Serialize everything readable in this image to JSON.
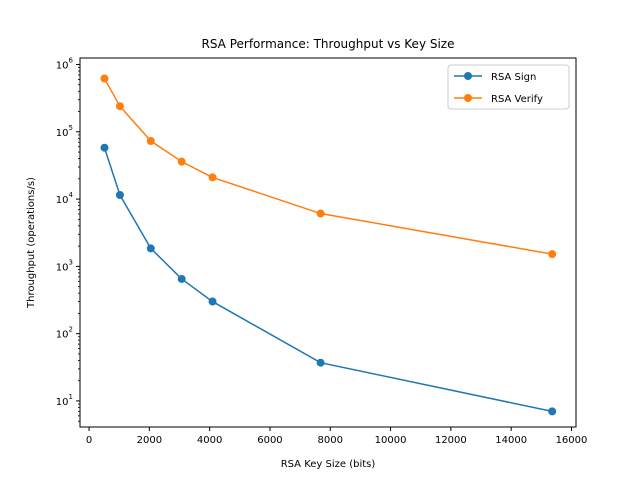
{
  "chart_data": {
    "type": "line",
    "title": "RSA Performance: Throughput vs Key Size",
    "xlabel": "RSA Key Size (bits)",
    "ylabel": "Throughput (operations/s)",
    "x_scale": "linear",
    "y_scale": "log",
    "xlim": [
      -300,
      16150
    ],
    "ylim": [
      4.1,
      1250000
    ],
    "x_ticks": [
      0,
      2000,
      4000,
      6000,
      8000,
      10000,
      12000,
      14000,
      16000
    ],
    "x_tick_labels": [
      "0",
      "2000",
      "4000",
      "6000",
      "8000",
      "10000",
      "12000",
      "14000",
      "16000"
    ],
    "y_ticks": [
      10,
      100,
      1000,
      10000,
      100000,
      1000000
    ],
    "y_tick_labels": [
      {
        "base": "10",
        "exp": "1"
      },
      {
        "base": "10",
        "exp": "2"
      },
      {
        "base": "10",
        "exp": "3"
      },
      {
        "base": "10",
        "exp": "4"
      },
      {
        "base": "10",
        "exp": "5"
      },
      {
        "base": "10",
        "exp": "6"
      }
    ],
    "grid": false,
    "legend_position": "top-right",
    "x": [
      512,
      1024,
      2048,
      3072,
      4096,
      7680,
      15360
    ],
    "series": [
      {
        "name": "RSA Sign",
        "color": "#1f77b4",
        "values": [
          58000,
          11500,
          1850,
          650,
          300,
          37,
          7
        ]
      },
      {
        "name": "RSA Verify",
        "color": "#ff7f0e",
        "values": [
          620000,
          240000,
          73000,
          36000,
          21000,
          6100,
          1520
        ]
      }
    ]
  }
}
